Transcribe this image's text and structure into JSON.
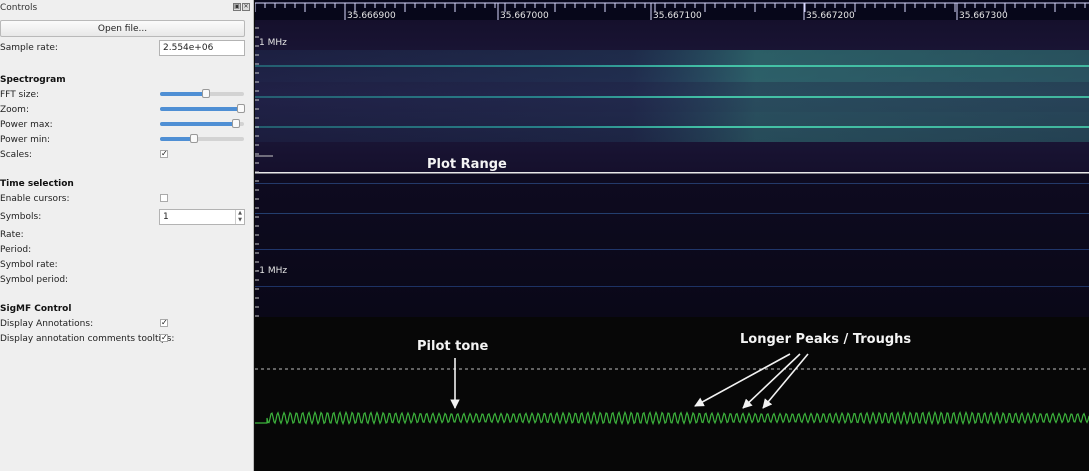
{
  "panel": {
    "title": "Controls",
    "open_file_label": "Open file...",
    "sample_rate": {
      "label": "Sample rate:",
      "value": "2.554e+06"
    },
    "spectrogram": {
      "heading": "Spectrogram",
      "fft_size": {
        "label": "FFT size:",
        "value": 0.55
      },
      "zoom": {
        "label": "Zoom:",
        "value": 0.97
      },
      "power_max": {
        "label": "Power max:",
        "value": 0.9
      },
      "power_min": {
        "label": "Power min:",
        "value": 0.4
      },
      "scales": {
        "label": "Scales:",
        "checked": true,
        "mark": "✓"
      }
    },
    "time_selection": {
      "heading": "Time selection",
      "enable_cursors": {
        "label": "Enable cursors:",
        "checked": false
      },
      "symbols": {
        "label": "Symbols:",
        "value": "1"
      },
      "rate_label": "Rate:",
      "period_label": "Period:",
      "symbol_rate_label": "Symbol rate:",
      "symbol_period_label": "Symbol period:"
    },
    "sigmf": {
      "heading": "SigMF Control",
      "display_annotations": {
        "label": "Display Annotations:",
        "checked": true,
        "mark": "✓"
      },
      "display_tooltips": {
        "label": "Display annotation comments tooltips:",
        "checked": true,
        "mark": "✓"
      }
    }
  },
  "plot": {
    "time_ticks": [
      "35.666900",
      "35.667000",
      "35.667100",
      "35.667200",
      "35.667300"
    ],
    "freq_top_label": "1 MHz",
    "freq_bottom_label": "-1 MHz",
    "annotations": {
      "plot_range": "Plot Range",
      "pilot_tone": "Pilot tone",
      "longer_peaks": "Longer Peaks / Troughs"
    },
    "colors": {
      "signal": "#2bb5a8",
      "trace": "#3db43d",
      "background": "#120d28"
    }
  }
}
